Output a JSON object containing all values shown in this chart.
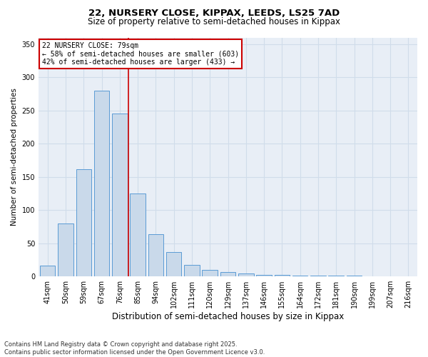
{
  "title1": "22, NURSERY CLOSE, KIPPAX, LEEDS, LS25 7AD",
  "title2": "Size of property relative to semi-detached houses in Kippax",
  "xlabel": "Distribution of semi-detached houses by size in Kippax",
  "ylabel": "Number of semi-detached properties",
  "categories": [
    "41sqm",
    "50sqm",
    "59sqm",
    "67sqm",
    "76sqm",
    "85sqm",
    "94sqm",
    "102sqm",
    "111sqm",
    "120sqm",
    "129sqm",
    "137sqm",
    "146sqm",
    "155sqm",
    "164sqm",
    "172sqm",
    "181sqm",
    "190sqm",
    "199sqm",
    "207sqm",
    "216sqm"
  ],
  "values": [
    16,
    80,
    162,
    280,
    245,
    125,
    64,
    37,
    17,
    10,
    7,
    4,
    2,
    2,
    1,
    1,
    1,
    1,
    0,
    0,
    0
  ],
  "bar_color": "#c9d9ea",
  "bar_edge_color": "#5b9bd5",
  "grid_color": "#d0dcea",
  "bg_color": "#e8eef6",
  "vline_x": 4.5,
  "vline_color": "#cc0000",
  "annotation_line1": "22 NURSERY CLOSE: 79sqm",
  "annotation_line2": "← 58% of semi-detached houses are smaller (603)",
  "annotation_line3": "42% of semi-detached houses are larger (433) →",
  "annotation_box_color": "#cc0000",
  "footer1": "Contains HM Land Registry data © Crown copyright and database right 2025.",
  "footer2": "Contains public sector information licensed under the Open Government Licence v3.0.",
  "ylim": [
    0,
    360
  ],
  "yticks": [
    0,
    50,
    100,
    150,
    200,
    250,
    300,
    350
  ],
  "title1_fontsize": 9.5,
  "title2_fontsize": 8.5,
  "ylabel_fontsize": 7.5,
  "xlabel_fontsize": 8.5,
  "tick_fontsize": 7,
  "ann_fontsize": 7,
  "footer_fontsize": 6
}
